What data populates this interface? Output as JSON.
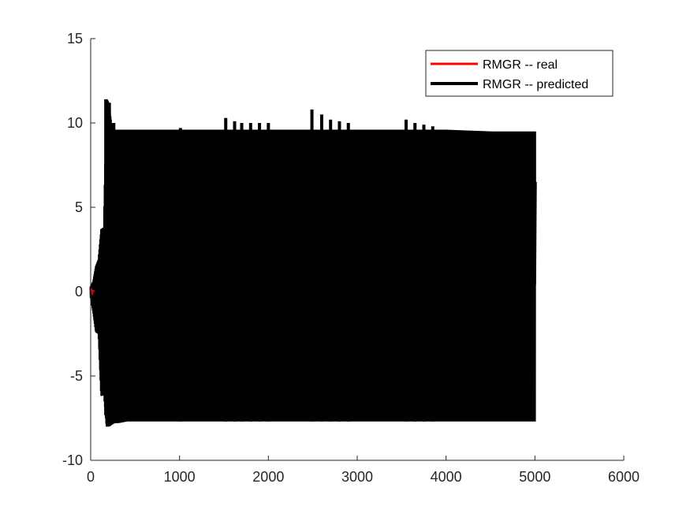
{
  "chart_data": {
    "type": "line",
    "title": "",
    "xlabel": "",
    "ylabel": "",
    "xlim": [
      0,
      6000
    ],
    "ylim": [
      -10,
      15
    ],
    "x_ticks": [
      0,
      1000,
      2000,
      3000,
      4000,
      5000,
      6000
    ],
    "y_ticks": [
      -10,
      -5,
      0,
      5,
      10,
      15
    ],
    "x_tick_labels": [
      "0",
      "1000",
      "2000",
      "3000",
      "4000",
      "5000",
      "6000"
    ],
    "y_tick_labels": [
      "-10",
      "-5",
      "0",
      "5",
      "10",
      "15"
    ],
    "grid": false,
    "legend_position": "top-right",
    "series": [
      {
        "name": "RMGR -- real",
        "color": "#ff0000",
        "x": [
          0,
          10,
          20,
          30,
          40
        ],
        "y": [
          0.0,
          0.1,
          -0.1,
          0.05,
          0.0
        ]
      },
      {
        "name": "RMGR -- predicted",
        "color": "#000000",
        "x_start": 0,
        "x_end": 5000,
        "envelope": {
          "x": [
            0,
            30,
            60,
            90,
            120,
            150,
            180,
            200,
            230,
            260,
            300,
            400,
            500,
            700,
            1000,
            1500,
            2000,
            2500,
            3000,
            3500,
            4000,
            4500,
            5000
          ],
          "upper": [
            0.3,
            0.6,
            1.5,
            1.9,
            3.7,
            3.8,
            11.4,
            11.2,
            10.0,
            9.6,
            9.6,
            9.6,
            9.6,
            9.6,
            9.6,
            9.6,
            9.6,
            9.6,
            9.6,
            9.6,
            9.6,
            9.5,
            9.5
          ],
          "lower": [
            -0.3,
            -1.2,
            -2.4,
            -2.5,
            -6.2,
            -6.0,
            -8.0,
            -8.0,
            -7.9,
            -7.8,
            -7.8,
            -7.7,
            -7.7,
            -7.7,
            -7.7,
            -7.7,
            -7.7,
            -7.7,
            -7.7,
            -7.7,
            -7.7,
            -7.7,
            -7.7
          ]
        },
        "spikes": [
          {
            "x": 170,
            "y": 11.4
          },
          {
            "x": 210,
            "y": 11.2
          },
          {
            "x": 260,
            "y": 10.0
          },
          {
            "x": 1010,
            "y": 9.7
          },
          {
            "x": 1520,
            "y": 10.3
          },
          {
            "x": 1620,
            "y": 10.1
          },
          {
            "x": 1700,
            "y": 10.0
          },
          {
            "x": 1800,
            "y": 10.0
          },
          {
            "x": 1900,
            "y": 10.0
          },
          {
            "x": 2000,
            "y": 10.0
          },
          {
            "x": 2490,
            "y": 10.8
          },
          {
            "x": 2600,
            "y": 10.5
          },
          {
            "x": 2700,
            "y": 10.2
          },
          {
            "x": 2800,
            "y": 10.1
          },
          {
            "x": 2900,
            "y": 10.0
          },
          {
            "x": 3550,
            "y": 10.2
          },
          {
            "x": 3650,
            "y": 10.0
          },
          {
            "x": 3750,
            "y": 9.9
          },
          {
            "x": 3850,
            "y": 9.8
          }
        ],
        "end_values": [
          0.4,
          6.5
        ]
      }
    ]
  }
}
